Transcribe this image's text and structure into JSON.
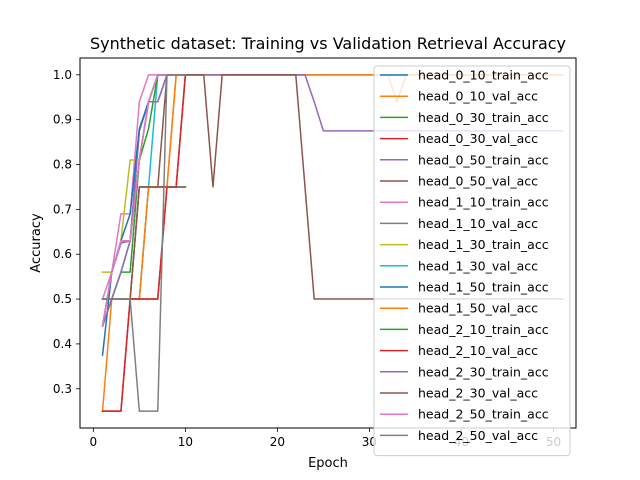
{
  "chart_data": {
    "type": "line",
    "title": "Synthetic dataset: Training vs Validation Retrieval Accuracy",
    "xlabel": "Epoch",
    "ylabel": "Accuracy",
    "xlim": [
      -1.45,
      52.45
    ],
    "ylim": [
      0.2125,
      1.0375
    ],
    "xticks": [
      0,
      10,
      20,
      30,
      40,
      50
    ],
    "yticks": [
      0.3,
      0.4,
      0.5,
      0.6,
      0.7,
      0.8,
      0.9,
      1.0
    ],
    "xtick_labels": [
      "0",
      "10",
      "20",
      "30",
      "40",
      "50"
    ],
    "ytick_labels": [
      "0.3",
      "0.4",
      "0.5",
      "0.6",
      "0.7",
      "0.8",
      "0.9",
      "1.0"
    ],
    "grid": false,
    "legend_position": "upper right",
    "series": [
      {
        "name": "head_0_10_train_acc",
        "color": "#1f77b4",
        "x": [
          1,
          2,
          3,
          4,
          5,
          6,
          7,
          8,
          9,
          10,
          11,
          12,
          13,
          14,
          15,
          16,
          17,
          18,
          19,
          20,
          21,
          22,
          23,
          24,
          25,
          26,
          27,
          28,
          29,
          30,
          31,
          32,
          33,
          34,
          35,
          36,
          37,
          38,
          39,
          40,
          41,
          42,
          43,
          44,
          45,
          46,
          47,
          48,
          49,
          50,
          51
        ],
        "y": [
          0.375,
          0.56,
          0.625,
          0.63,
          0.875,
          0.94,
          1.0,
          1.0,
          1.0,
          1.0,
          1.0,
          1.0,
          1.0,
          1.0,
          1.0,
          1.0,
          1.0,
          1.0,
          1.0,
          1.0,
          1.0,
          1.0,
          1.0,
          1.0,
          1.0,
          1.0,
          1.0,
          1.0,
          1.0,
          1.0,
          1.0,
          1.0,
          1.0,
          1.0,
          1.0,
          1.0,
          1.0,
          1.0,
          1.0,
          1.0,
          1.0,
          1.0,
          1.0,
          1.0,
          1.0,
          1.0,
          1.0,
          1.0,
          1.0,
          1.0,
          1.0
        ]
      },
      {
        "name": "head_0_10_val_acc",
        "color": "#ff7f0e",
        "x": [
          1,
          2,
          3,
          4,
          5,
          6,
          7,
          8,
          9,
          10,
          11,
          12,
          13,
          14,
          15,
          16,
          17,
          18,
          19,
          20,
          21,
          22,
          23,
          24,
          25,
          26,
          27,
          28,
          29,
          30,
          31,
          32,
          33,
          34,
          35,
          36,
          37,
          38,
          39,
          40,
          41,
          42,
          43,
          44,
          45,
          46,
          47,
          48,
          49,
          50,
          51
        ],
        "y": [
          0.25,
          0.5,
          0.5,
          0.5,
          0.5,
          0.75,
          0.75,
          0.75,
          1.0,
          1.0,
          1.0,
          1.0,
          1.0,
          1.0,
          1.0,
          1.0,
          1.0,
          1.0,
          1.0,
          1.0,
          1.0,
          1.0,
          1.0,
          1.0,
          1.0,
          1.0,
          1.0,
          1.0,
          1.0,
          1.0,
          1.0,
          1.0,
          0.94,
          1.0,
          1.0,
          1.0,
          1.0,
          1.0,
          1.0,
          1.0,
          1.0,
          1.0,
          1.0,
          1.0,
          1.0,
          1.0,
          1.0,
          1.0,
          1.0,
          1.0,
          1.0
        ]
      },
      {
        "name": "head_0_30_train_acc",
        "color": "#2ca02c",
        "x": [
          1,
          2,
          3,
          4,
          5,
          6,
          7,
          8,
          9,
          10
        ],
        "y": [
          0.44,
          0.5,
          0.56,
          0.63,
          0.81,
          0.94,
          1.0,
          1.0,
          1.0,
          1.0
        ]
      },
      {
        "name": "head_0_30_val_acc",
        "color": "#d62728",
        "x": [
          1,
          2,
          3,
          4,
          5,
          6,
          7,
          8,
          9,
          10
        ],
        "y": [
          0.25,
          0.25,
          0.25,
          0.5,
          0.5,
          0.5,
          0.5,
          0.75,
          0.75,
          1.0
        ]
      },
      {
        "name": "head_0_50_train_acc",
        "color": "#9467bd",
        "x": [
          1,
          2,
          3,
          4,
          5,
          6,
          7,
          8,
          9,
          10,
          11,
          12,
          13,
          14,
          15,
          16,
          17,
          18,
          19,
          20,
          21,
          22,
          23,
          24,
          25,
          26,
          27,
          28,
          29,
          30,
          31,
          32,
          33,
          34,
          35,
          36,
          37,
          38,
          39,
          40,
          41,
          42,
          43,
          44,
          45,
          46,
          47,
          48,
          49,
          50,
          51
        ],
        "y": [
          0.44,
          0.56,
          0.625,
          0.63,
          0.875,
          0.94,
          0.94,
          1.0,
          1.0,
          1.0,
          1.0,
          1.0,
          1.0,
          1.0,
          1.0,
          1.0,
          1.0,
          1.0,
          1.0,
          1.0,
          1.0,
          1.0,
          1.0,
          0.94,
          0.875,
          0.875,
          0.875,
          0.875,
          0.875,
          0.875,
          0.875,
          0.875,
          0.875,
          0.875,
          0.875,
          0.875,
          0.875,
          0.875,
          0.875,
          0.875,
          0.875,
          0.875,
          0.875,
          0.875,
          0.875,
          0.875,
          0.875,
          0.875,
          0.875,
          0.875,
          0.875
        ]
      },
      {
        "name": "head_0_50_val_acc",
        "color": "#8c564b",
        "x": [
          1,
          2,
          3,
          4,
          5,
          6,
          7,
          8,
          9,
          10,
          11,
          12,
          13,
          14,
          15,
          16,
          17,
          18,
          19,
          20,
          21,
          22,
          23,
          24,
          25,
          26,
          27,
          28,
          29,
          30,
          31,
          32,
          33,
          34,
          35,
          36,
          37,
          38,
          39,
          40,
          41,
          42,
          43,
          44,
          45,
          46,
          47,
          48,
          49,
          50,
          51
        ],
        "y": [
          0.5,
          0.5,
          0.5,
          0.5,
          0.75,
          0.75,
          0.75,
          1.0,
          1.0,
          1.0,
          1.0,
          1.0,
          0.75,
          1.0,
          1.0,
          1.0,
          1.0,
          1.0,
          1.0,
          1.0,
          1.0,
          1.0,
          0.75,
          0.5,
          0.5,
          0.5,
          0.5,
          0.5,
          0.5,
          0.5,
          0.5,
          0.5,
          0.5,
          0.5,
          0.5,
          0.5,
          0.5,
          0.5,
          0.5,
          0.5,
          0.5,
          0.5,
          0.5,
          0.5,
          0.5,
          0.5,
          0.5,
          0.5,
          0.5,
          0.5,
          0.5
        ]
      },
      {
        "name": "head_1_10_train_acc",
        "color": "#e377c2",
        "x": [
          1,
          2,
          3,
          4,
          5,
          6,
          7,
          8,
          9,
          10
        ],
        "y": [
          0.5,
          0.56,
          0.69,
          0.69,
          0.94,
          1.0,
          1.0,
          1.0,
          1.0,
          1.0
        ]
      },
      {
        "name": "head_1_10_val_acc",
        "color": "#7f7f7f",
        "x": [
          1,
          2,
          3,
          4,
          5,
          6,
          7,
          8,
          9,
          10
        ],
        "y": [
          0.5,
          0.5,
          0.5,
          0.5,
          0.75,
          0.75,
          0.75,
          0.75,
          0.75,
          0.75
        ]
      },
      {
        "name": "head_1_30_train_acc",
        "color": "#bcbd22",
        "x": [
          1,
          2,
          3,
          4,
          5,
          6,
          7,
          8,
          9,
          10
        ],
        "y": [
          0.56,
          0.56,
          0.63,
          0.81,
          0.81,
          0.94,
          1.0,
          1.0,
          1.0,
          1.0
        ]
      },
      {
        "name": "head_1_30_val_acc",
        "color": "#17becf",
        "x": [
          1,
          2,
          3,
          4,
          5,
          6,
          7,
          8,
          9,
          10
        ],
        "y": [
          0.5,
          0.5,
          0.5,
          0.5,
          0.5,
          0.75,
          1.0,
          1.0,
          1.0,
          1.0
        ]
      },
      {
        "name": "head_1_50_train_acc",
        "color": "#1f77b4",
        "x": [
          1,
          2,
          3,
          4,
          5,
          6,
          7,
          8,
          9,
          10
        ],
        "y": [
          0.44,
          0.56,
          0.63,
          0.69,
          0.88,
          0.94,
          1.0,
          1.0,
          1.0,
          1.0
        ]
      },
      {
        "name": "head_1_50_val_acc",
        "color": "#ff7f0e",
        "x": [
          1,
          2,
          3,
          4,
          5,
          6,
          7,
          8,
          9,
          10
        ],
        "y": [
          0.5,
          0.5,
          0.5,
          0.5,
          0.5,
          0.75,
          0.75,
          0.75,
          1.0,
          1.0
        ]
      },
      {
        "name": "head_2_10_train_acc",
        "color": "#2ca02c",
        "x": [
          1,
          2,
          3,
          4,
          5,
          6,
          7,
          8,
          9,
          10
        ],
        "y": [
          0.44,
          0.5,
          0.56,
          0.56,
          0.81,
          0.88,
          1.0,
          1.0,
          1.0,
          1.0
        ]
      },
      {
        "name": "head_2_10_val_acc",
        "color": "#d62728",
        "x": [
          1,
          2,
          3,
          4,
          5,
          6,
          7,
          8,
          9,
          10
        ],
        "y": [
          0.25,
          0.25,
          0.25,
          0.5,
          0.5,
          0.5,
          0.5,
          0.75,
          0.75,
          1.0
        ]
      },
      {
        "name": "head_2_30_train_acc",
        "color": "#9467bd",
        "x": [
          1,
          2,
          3,
          4,
          5,
          6,
          7,
          8,
          9,
          10
        ],
        "y": [
          0.44,
          0.5,
          0.56,
          0.63,
          0.81,
          0.94,
          0.94,
          1.0,
          1.0,
          1.0
        ]
      },
      {
        "name": "head_2_30_val_acc",
        "color": "#8c564b",
        "x": [
          1,
          2,
          3,
          4,
          5,
          6,
          7,
          8,
          9,
          10
        ],
        "y": [
          0.5,
          0.5,
          0.5,
          0.5,
          0.75,
          0.75,
          0.75,
          0.75,
          0.75,
          0.75
        ]
      },
      {
        "name": "head_2_50_train_acc",
        "color": "#e377c2",
        "x": [
          1,
          2,
          3,
          4,
          5,
          6,
          7,
          8,
          9,
          10
        ],
        "y": [
          0.44,
          0.56,
          0.63,
          0.63,
          0.81,
          0.94,
          1.0,
          1.0,
          1.0,
          1.0
        ]
      },
      {
        "name": "head_2_50_val_acc",
        "color": "#7f7f7f",
        "x": [
          1,
          2,
          3,
          4,
          5,
          6,
          7,
          8,
          9,
          10
        ],
        "y": [
          0.5,
          0.5,
          0.5,
          0.5,
          0.25,
          0.25,
          0.25,
          1.0,
          1.0,
          1.0
        ]
      }
    ]
  }
}
